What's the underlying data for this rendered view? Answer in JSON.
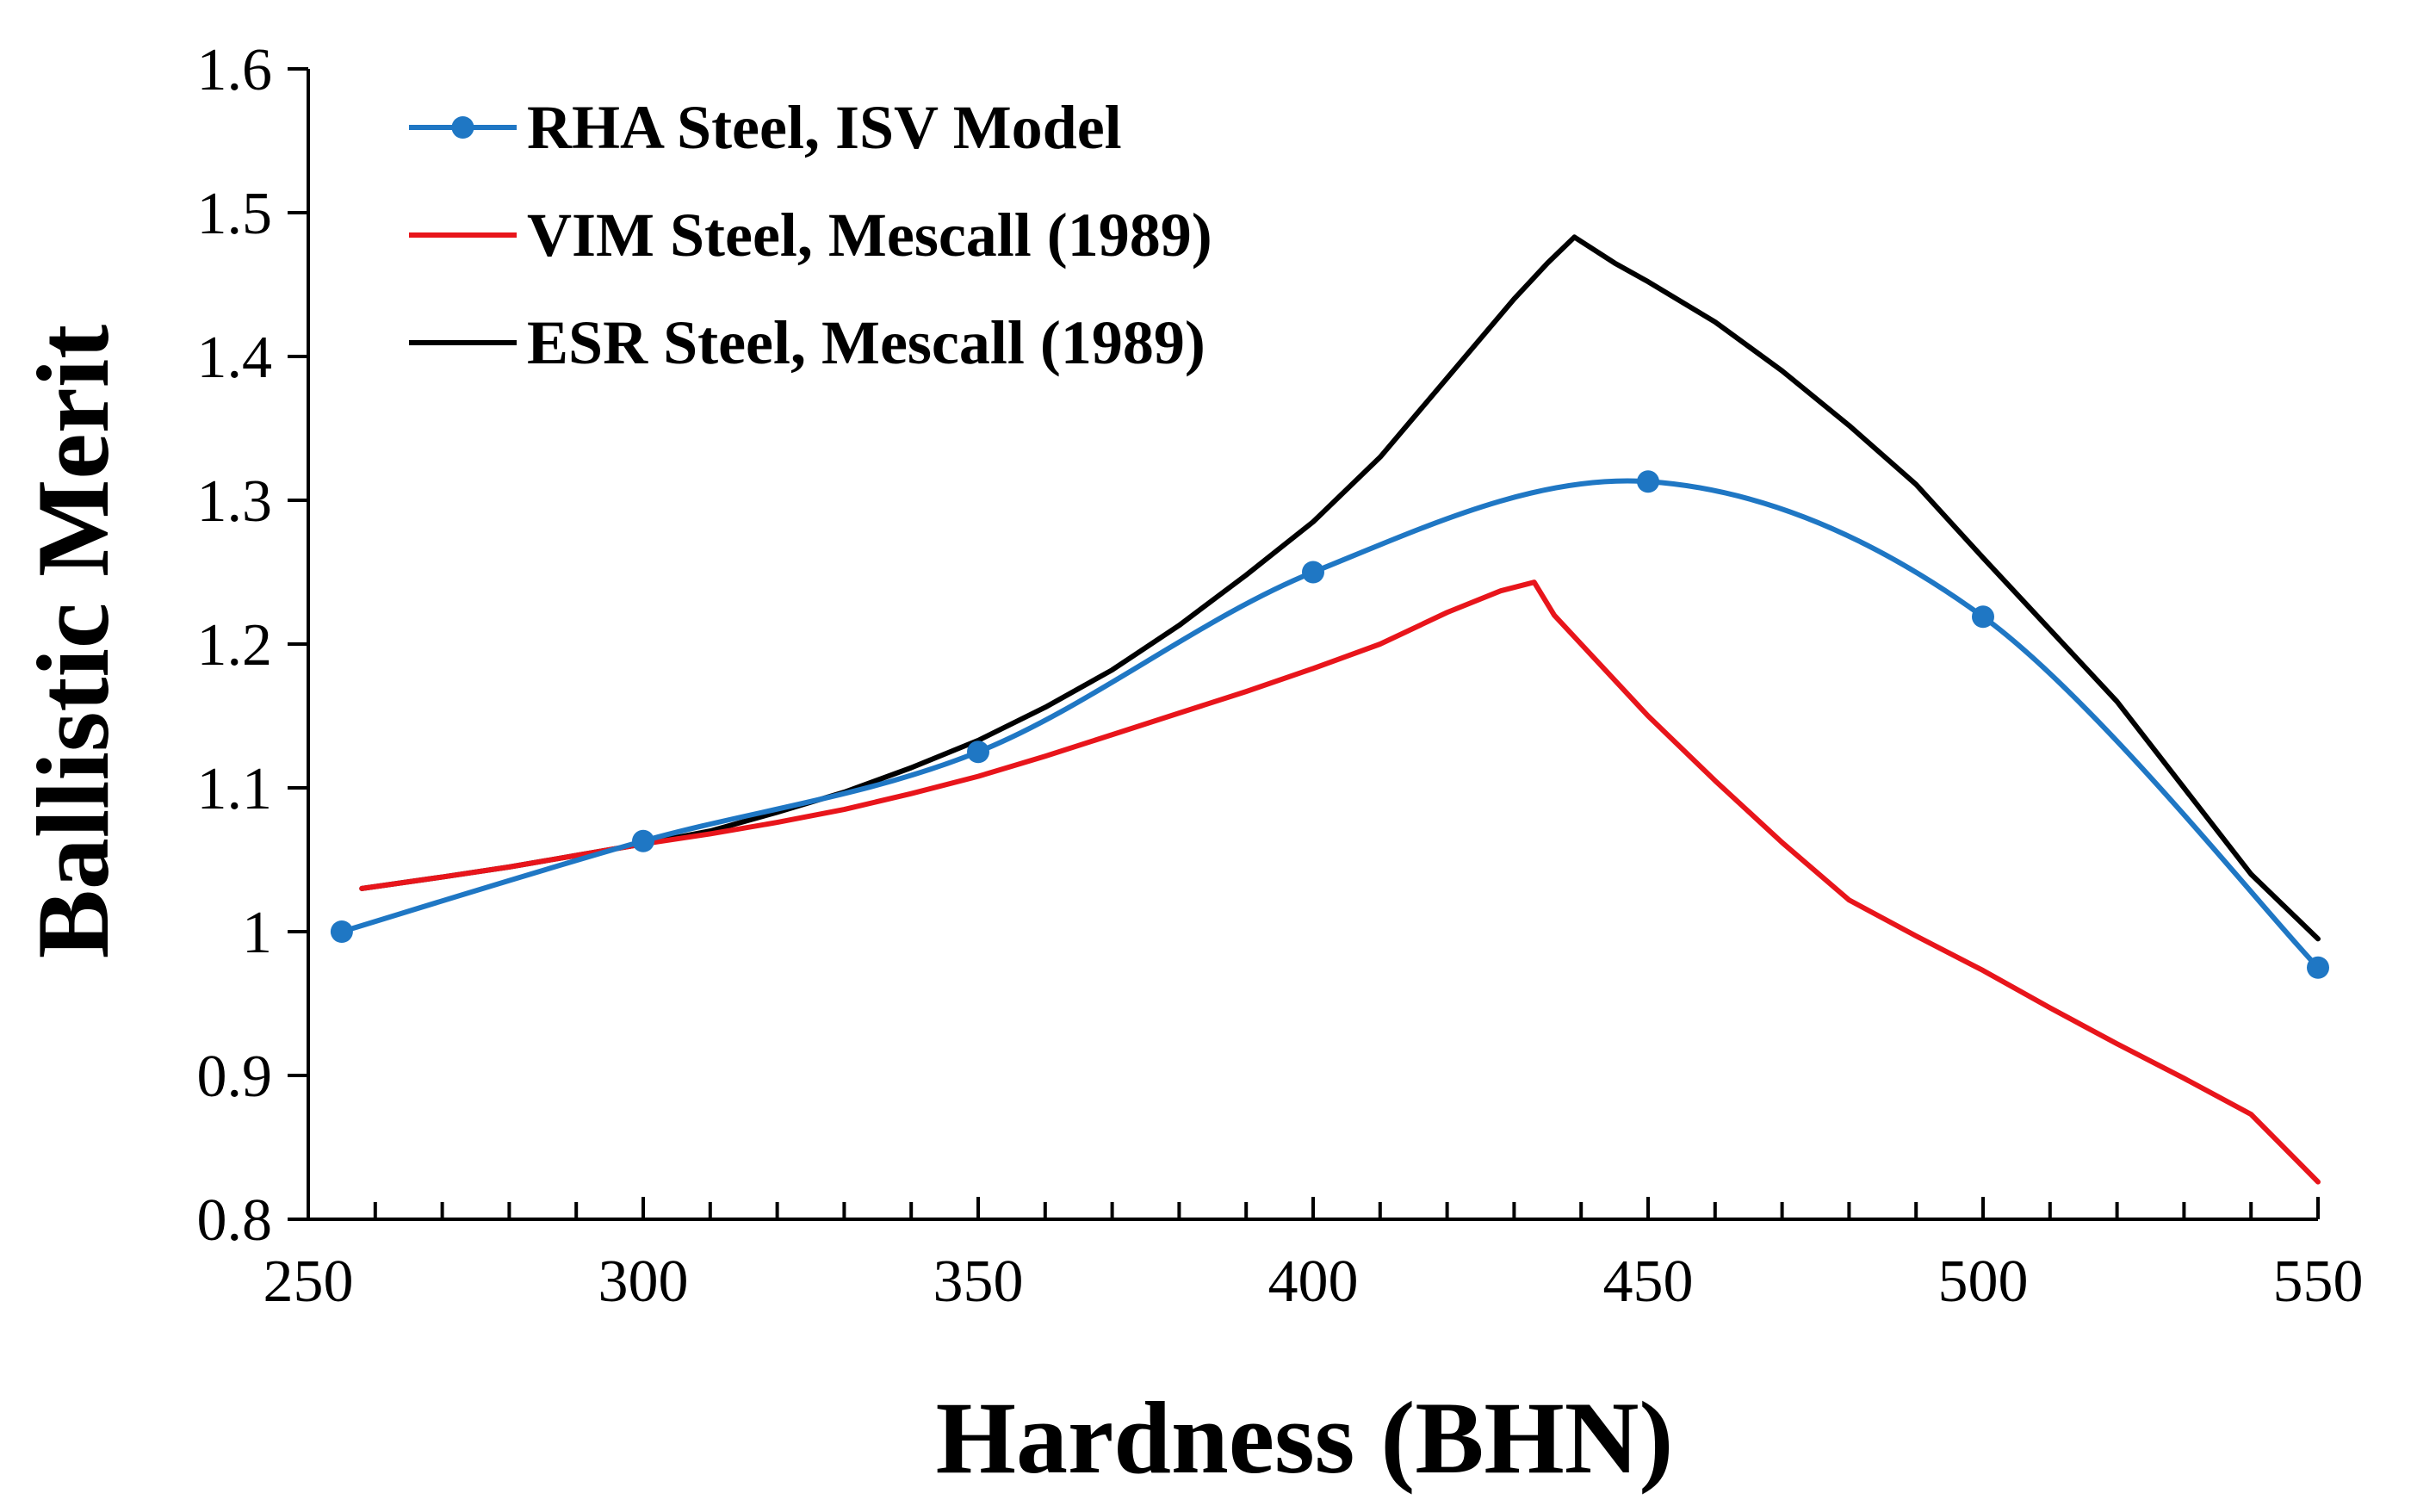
{
  "chart_data": {
    "type": "line",
    "title": "",
    "xlabel": "Hardness (BHN)",
    "ylabel": "Ballistic Merit",
    "xlim": [
      250,
      550
    ],
    "ylim": [
      0.8,
      1.6
    ],
    "xticks": [
      250,
      300,
      350,
      400,
      450,
      500,
      550
    ],
    "xtick_labels": [
      "250",
      "300",
      "350",
      "400",
      "450",
      "500",
      "550"
    ],
    "x_minor_step": 10,
    "yticks": [
      0.8,
      0.9,
      1.0,
      1.1,
      1.2,
      1.3,
      1.4,
      1.5,
      1.6
    ],
    "ytick_labels": [
      "0.8",
      "0.9",
      "1",
      "1.1",
      "1.2",
      "1.3",
      "1.4",
      "1.5",
      "1.6"
    ],
    "grid": false,
    "legend_position": "top-left",
    "series": [
      {
        "name": "RHA Steel, ISV Model",
        "color": "#1f77c4",
        "markers": true,
        "smooth": true,
        "x": [
          255,
          300,
          350,
          400,
          450,
          500,
          550
        ],
        "y": [
          1.0,
          1.063,
          1.125,
          1.25,
          1.313,
          1.219,
          0.975
        ]
      },
      {
        "name": "VIM Steel, Mescall (1989)",
        "color": "#e8151b",
        "markers": false,
        "smooth": false,
        "x": [
          258,
          270,
          280,
          290,
          300,
          310,
          320,
          330,
          340,
          350,
          360,
          370,
          380,
          390,
          400,
          410,
          420,
          428,
          433,
          436,
          440,
          450,
          460,
          470,
          480,
          490,
          500,
          510,
          520,
          530,
          540,
          550
        ],
        "y": [
          1.03,
          1.038,
          1.045,
          1.053,
          1.061,
          1.068,
          1.076,
          1.085,
          1.096,
          1.108,
          1.122,
          1.137,
          1.152,
          1.167,
          1.183,
          1.2,
          1.222,
          1.237,
          1.243,
          1.22,
          1.2,
          1.15,
          1.105,
          1.062,
          1.022,
          0.997,
          0.973,
          0.947,
          0.922,
          0.898,
          0.873,
          0.826
        ]
      },
      {
        "name": "ESR Steel, Mescall (1989)",
        "color": "#000000",
        "markers": false,
        "smooth": false,
        "x": [
          258,
          270,
          280,
          290,
          300,
          310,
          320,
          330,
          340,
          350,
          360,
          370,
          380,
          390,
          400,
          410,
          420,
          430,
          435,
          439,
          445,
          450,
          460,
          470,
          480,
          490,
          500,
          510,
          520,
          530,
          540,
          550
        ],
        "y": [
          1.03,
          1.038,
          1.045,
          1.053,
          1.061,
          1.07,
          1.083,
          1.097,
          1.114,
          1.133,
          1.156,
          1.182,
          1.213,
          1.248,
          1.285,
          1.33,
          1.385,
          1.44,
          1.465,
          1.483,
          1.465,
          1.452,
          1.424,
          1.39,
          1.352,
          1.311,
          1.26,
          1.21,
          1.16,
          1.1,
          1.04,
          0.995
        ]
      }
    ]
  }
}
